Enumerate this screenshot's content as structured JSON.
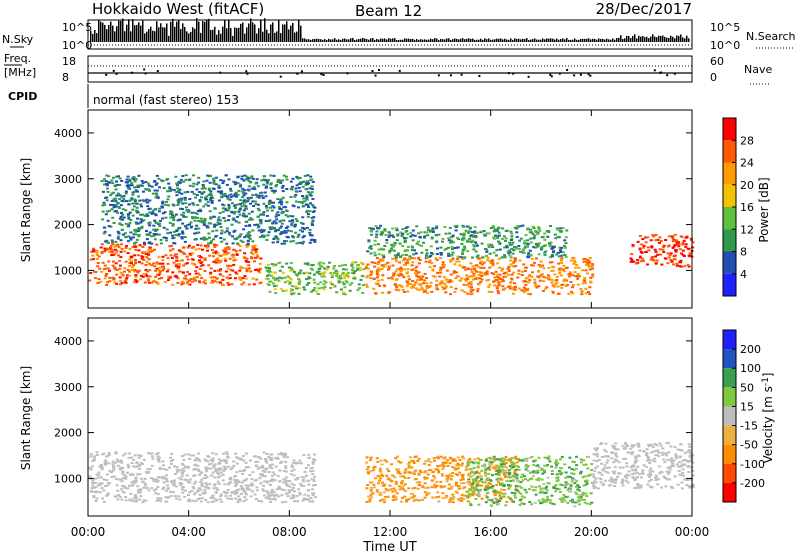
{
  "header": {
    "station": "Hokkaido West (fitACF)",
    "beam": "Beam 12",
    "date": "28/Dec/2017",
    "program": "normal (fast stereo) 153"
  },
  "status_panel": {
    "nsky_label": "N.Sky",
    "nsearch_label": "N.Search",
    "nsky_ticks": [
      "10^5",
      "10^0"
    ],
    "nsearch_ticks": [
      "10^5",
      "10^0"
    ],
    "freq_label_1": "Freq.",
    "freq_label_2": "[MHz]",
    "freq_ticks": [
      "18",
      "8"
    ],
    "nave_label": "Nave",
    "nave_ticks": [
      "60",
      "0"
    ],
    "cpid_label": "CPID"
  },
  "colors": {
    "power_scale": [
      "#2020ff",
      "#1f4fb0",
      "#2f9a4a",
      "#5fbf3f",
      "#f2c400",
      "#ff9a00",
      "#ff5a00",
      "#ff0000"
    ],
    "velocity_scale": [
      "#ff0000",
      "#ff4a00",
      "#ff8c00",
      "#f0b040",
      "#bebebe",
      "#80c840",
      "#3aa050",
      "#1f55c0",
      "#2020ff"
    ]
  },
  "chart_data": [
    {
      "type": "heatmap",
      "title": "",
      "xlabel": "Time UT",
      "ylabel": "Slant Range [km]",
      "xlim": [
        "00:00",
        "24:00"
      ],
      "ylim": [
        180,
        4500
      ],
      "x_ticks": [
        "00:00",
        "04:00",
        "08:00",
        "12:00",
        "16:00",
        "20:00",
        "00:00"
      ],
      "y_ticks": [
        1000,
        2000,
        3000,
        4000
      ],
      "colorbar": {
        "label": "Power [dB]",
        "ticks": [
          4,
          8,
          12,
          16,
          20,
          24,
          28
        ],
        "range": [
          0,
          32
        ]
      },
      "features": [
        {
          "time_start": "00:00",
          "time_end": "06:50",
          "range_low": 700,
          "range_high": 1600,
          "level": 26
        },
        {
          "time_start": "00:30",
          "time_end": "09:00",
          "range_low": 1600,
          "range_high": 3100,
          "level": 8
        },
        {
          "time_start": "07:00",
          "time_end": "11:00",
          "range_low": 500,
          "range_high": 1200,
          "level": 14
        },
        {
          "time_start": "11:00",
          "time_end": "20:00",
          "range_low": 500,
          "range_high": 1300,
          "level": 24
        },
        {
          "time_start": "11:00",
          "time_end": "19:00",
          "range_low": 1300,
          "range_high": 2000,
          "level": 10
        },
        {
          "time_start": "21:30",
          "time_end": "24:00",
          "range_low": 1100,
          "range_high": 1800,
          "level": 28
        }
      ]
    },
    {
      "type": "heatmap",
      "title": "",
      "xlabel": "Time UT",
      "ylabel": "Slant Range [km]",
      "xlim": [
        "00:00",
        "24:00"
      ],
      "ylim": [
        180,
        4500
      ],
      "x_ticks": [
        "00:00",
        "04:00",
        "08:00",
        "12:00",
        "16:00",
        "20:00",
        "00:00"
      ],
      "y_ticks": [
        1000,
        2000,
        3000,
        4000
      ],
      "colorbar": {
        "label": "Velocity [m s^-1]",
        "ticks": [
          200,
          100,
          50,
          15,
          -15,
          -50,
          -100,
          -200
        ]
      },
      "features": [
        {
          "time_start": "00:00",
          "time_end": "09:00",
          "range_low": 500,
          "range_high": 1600,
          "velocity": 0
        },
        {
          "time_start": "11:00",
          "time_end": "17:00",
          "range_low": 500,
          "range_high": 1500,
          "velocity": -60
        },
        {
          "time_start": "15:00",
          "time_end": "20:00",
          "range_low": 400,
          "range_high": 1500,
          "velocity": 40
        },
        {
          "time_start": "20:00",
          "time_end": "24:00",
          "range_low": 800,
          "range_high": 1800,
          "velocity": 0
        }
      ]
    }
  ],
  "time_axis_label": "Time UT",
  "power_axis_label": "Power [dB]",
  "velocity_axis_label": "Velocity [m s",
  "velocity_axis_sup": "-1",
  "velocity_axis_close": "]",
  "slant_range_label": "Slant Range [km]"
}
